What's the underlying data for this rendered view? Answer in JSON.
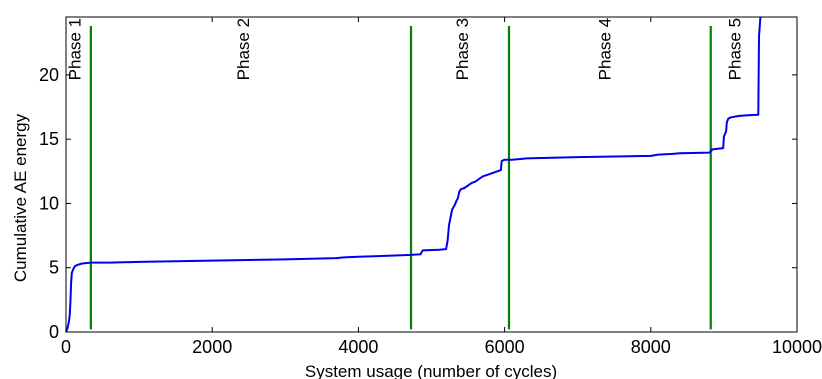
{
  "chart_data": {
    "type": "line",
    "title": "",
    "xlabel": "System usage (number of cycles)",
    "ylabel": "Cumulative AE energy",
    "xlim": [
      0,
      10000
    ],
    "ylim": [
      0,
      24.5
    ],
    "x_ticks": [
      0,
      2000,
      4000,
      6000,
      8000,
      10000
    ],
    "y_ticks": [
      0,
      5,
      10,
      15,
      20
    ],
    "x_tick_labels": [
      "0",
      "2000",
      "4000",
      "6000",
      "8000",
      "10000"
    ],
    "y_tick_labels": [
      "0",
      "5",
      "10",
      "15",
      "20"
    ],
    "grid": false,
    "colors": {
      "series": "#0000ee",
      "phase_lines": "#007f00"
    },
    "series": [
      {
        "x": [
          0,
          20,
          40,
          50,
          60,
          70,
          80,
          100,
          120,
          150,
          200,
          250,
          340,
          600,
          1000,
          2000,
          3000,
          3700,
          3800,
          4000,
          4500,
          4720,
          4850,
          4880,
          5100,
          5200,
          5220,
          5240,
          5260,
          5280,
          5300,
          5320,
          5340,
          5360,
          5380,
          5400,
          5450,
          5500,
          5550,
          5600,
          5650,
          5700,
          5800,
          5900,
          5950,
          5960,
          6000,
          6100,
          6200,
          6300,
          7000,
          8000,
          8100,
          8300,
          8400,
          8800,
          8830,
          8840,
          8990,
          9000,
          9030,
          9040,
          9060,
          9100,
          9200,
          9300,
          9470,
          9480,
          9500
        ],
        "y": [
          0,
          0.3,
          0.8,
          1.3,
          2.3,
          3.8,
          4.6,
          4.9,
          5.1,
          5.2,
          5.3,
          5.35,
          5.4,
          5.4,
          5.45,
          5.55,
          5.65,
          5.75,
          5.8,
          5.85,
          5.95,
          6.0,
          6.05,
          6.35,
          6.4,
          6.45,
          7.1,
          8.3,
          8.9,
          9.5,
          9.7,
          9.9,
          10.2,
          10.4,
          10.9,
          11.1,
          11.2,
          11.4,
          11.6,
          11.7,
          11.9,
          12.1,
          12.3,
          12.5,
          12.6,
          13.3,
          13.4,
          13.4,
          13.45,
          13.5,
          13.6,
          13.7,
          13.8,
          13.85,
          13.9,
          13.95,
          14.1,
          14.2,
          14.3,
          15.2,
          15.6,
          16.3,
          16.6,
          16.7,
          16.8,
          16.85,
          16.9,
          23.0,
          24.5
        ]
      }
    ],
    "phase_boundaries": [
      340,
      4720,
      6060,
      8820
    ],
    "phase_lines_top": 23.8,
    "phases": [
      {
        "label": "Phase 1",
        "x": 200,
        "y": 22
      },
      {
        "label": "Phase 2",
        "x": 2500,
        "y": 22
      },
      {
        "label": "Phase 3",
        "x": 5500,
        "y": 22
      },
      {
        "label": "Phase 4",
        "x": 7450,
        "y": 22
      },
      {
        "label": "Phase 5",
        "x": 9230,
        "y": 22
      }
    ]
  }
}
